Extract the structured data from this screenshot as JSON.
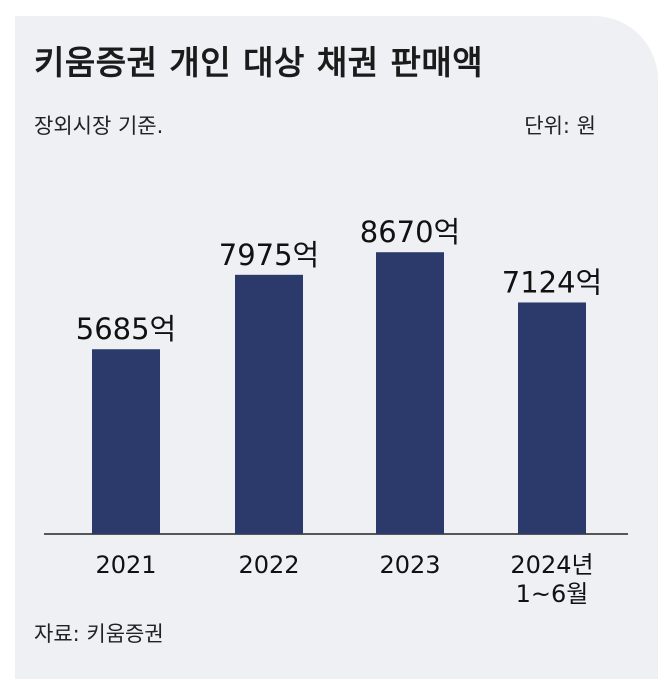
{
  "chart_data": {
    "type": "bar",
    "title": "키움증권 개인 대상 채권 판매액",
    "subtitle": "장외시장 기준.",
    "unit_label": "단위: 원",
    "source": "자료: 키움증권",
    "categories": [
      [
        "2021"
      ],
      [
        "2022"
      ],
      [
        "2023"
      ],
      [
        "2024년",
        "1~6월"
      ]
    ],
    "values": [
      5685,
      7975,
      8670,
      7124
    ],
    "value_labels": [
      "5685억",
      "7975억",
      "8670억",
      "7124억"
    ],
    "ylim": [
      0,
      10000
    ],
    "grid": false,
    "bar_color": "#2b3a6b",
    "background_color": "#eef0f4"
  }
}
